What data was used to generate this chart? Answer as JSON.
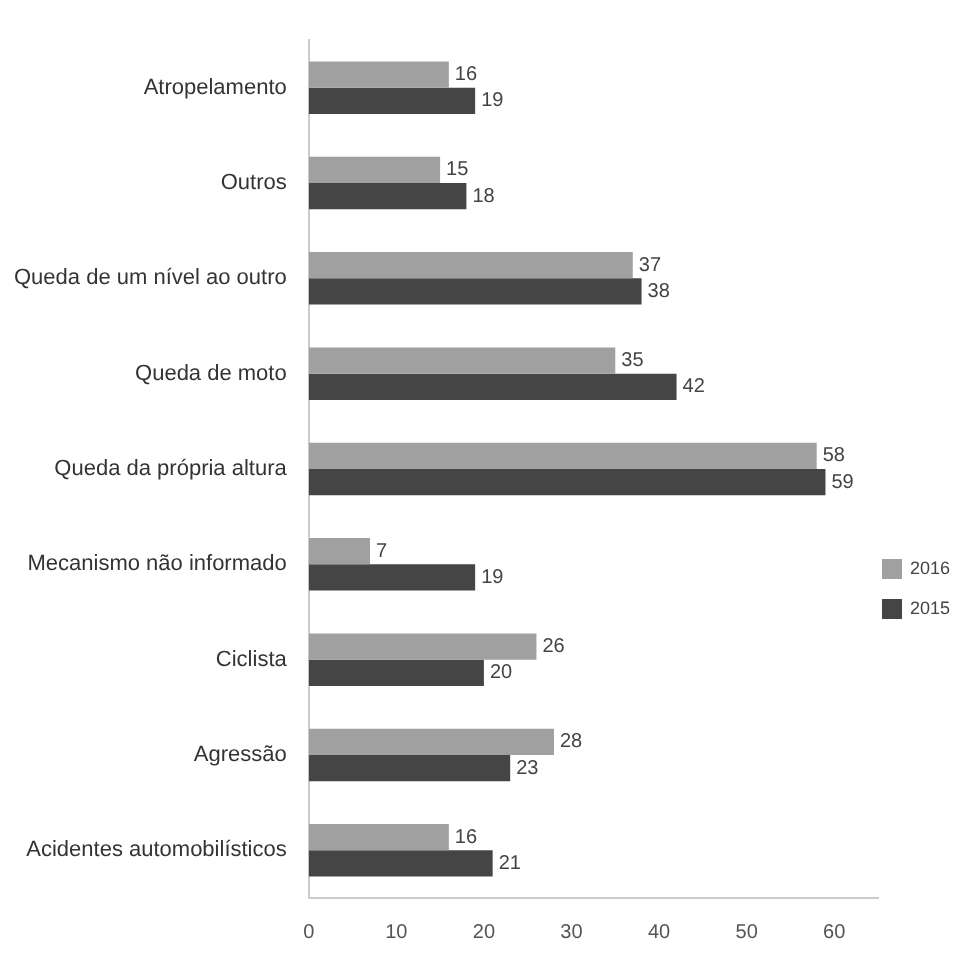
{
  "chart_data": {
    "type": "bar",
    "orientation": "horizontal",
    "categories": [
      "Atropelamento",
      "Outros",
      "Queda de um nível ao outro",
      "Queda de moto",
      "Queda da própria altura",
      "Mecanismo não informado",
      "Ciclista",
      "Agressão",
      "Acidentes automobilísticos"
    ],
    "series": [
      {
        "name": "2016",
        "color": "#a0a0a0",
        "values": [
          16,
          15,
          37,
          35,
          58,
          7,
          26,
          28,
          16
        ]
      },
      {
        "name": "2015",
        "color": "#454545",
        "values": [
          19,
          18,
          38,
          42,
          59,
          19,
          20,
          23,
          21
        ]
      }
    ],
    "xlim": [
      0,
      65
    ],
    "xticks": [
      0,
      10,
      20,
      30,
      40,
      50,
      60
    ],
    "grid": false,
    "legend": "right",
    "data_labels": true
  }
}
